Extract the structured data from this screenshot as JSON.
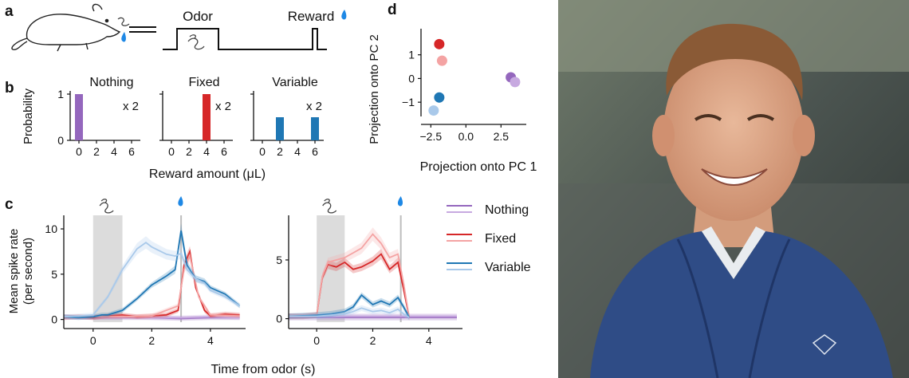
{
  "panels": {
    "a": {
      "letter": "a",
      "odor_label": "Odor",
      "reward_label": "Reward"
    },
    "b": {
      "letter": "b",
      "ylabel": "Probability",
      "xlabel": "Reward amount (μL)",
      "multiplier": "x 2",
      "titles": [
        "Nothing",
        "Fixed",
        "Variable"
      ],
      "yticks": [
        "0",
        "1"
      ],
      "xticks": [
        "0",
        "2",
        "4",
        "6"
      ]
    },
    "c": {
      "letter": "c",
      "ylabel_line1": "Mean spike rate",
      "ylabel_line2": "(per second)",
      "xlabel": "Time from odor (s)",
      "legend": [
        "Nothing",
        "Fixed",
        "Variable"
      ]
    },
    "d": {
      "letter": "d",
      "xlabel": "Projection onto PC 1",
      "ylabel": "Projection onto PC 2",
      "xticks": [
        "−2.5",
        "0.0",
        "2.5"
      ],
      "yticks": [
        "−1",
        "0",
        "1"
      ]
    }
  },
  "chart_data": [
    {
      "type": "bar",
      "panel": "b",
      "title": "Nothing",
      "xlabel": "Reward amount (μL)",
      "ylabel": "Probability",
      "x": [
        0
      ],
      "values": [
        1.0
      ],
      "ylim": [
        0,
        1
      ],
      "xlim": [
        -1,
        7
      ],
      "color": "#9467bd"
    },
    {
      "type": "bar",
      "panel": "b",
      "title": "Fixed",
      "x": [
        4
      ],
      "values": [
        1.0
      ],
      "ylim": [
        0,
        1
      ],
      "xlim": [
        -1,
        7
      ],
      "color": "#d62728"
    },
    {
      "type": "bar",
      "panel": "b",
      "title": "Variable",
      "x": [
        2,
        6
      ],
      "values": [
        0.5,
        0.5
      ],
      "ylim": [
        0,
        1
      ],
      "xlim": [
        -1,
        7
      ],
      "color": "#1f77b4"
    },
    {
      "type": "line",
      "panel": "c-left",
      "xlabel": "Time from odor (s)",
      "ylabel": "Mean spike rate (per second)",
      "xlim": [
        -1,
        5.2
      ],
      "ylim": [
        -0.3,
        11.5
      ],
      "xticks": [
        0,
        2,
        4
      ],
      "yticks": [
        0,
        5,
        10
      ],
      "odor_window": [
        0,
        1
      ],
      "reward_time": 3,
      "series": [
        {
          "color": "#9467bd",
          "x": [
            -1,
            0,
            1,
            2,
            3,
            4,
            5
          ],
          "values": [
            0.3,
            0.2,
            0.2,
            0.2,
            0.1,
            0.2,
            0.2
          ]
        },
        {
          "color": "#c7a9e0",
          "x": [
            -1,
            0,
            1,
            2,
            3,
            4,
            5
          ],
          "values": [
            0.2,
            0.3,
            0.3,
            0.2,
            0.2,
            0.3,
            0.2
          ]
        },
        {
          "color": "#d62728",
          "x": [
            -1,
            -0.5,
            0,
            0.5,
            1,
            1.5,
            2,
            2.5,
            2.9,
            3.1,
            3.3,
            3.5,
            3.8,
            4,
            4.5,
            5
          ],
          "values": [
            0.2,
            0.3,
            0.2,
            0.4,
            0.5,
            0.3,
            0.4,
            0.5,
            1.0,
            6.0,
            7.5,
            3.5,
            1.0,
            0.4,
            0.6,
            0.5
          ]
        },
        {
          "color": "#f4a3a3",
          "x": [
            -1,
            0,
            1,
            2,
            2.9,
            3.1,
            3.3,
            3.6,
            4,
            5
          ],
          "values": [
            0.3,
            0.3,
            0.3,
            0.4,
            1.5,
            5.5,
            7.0,
            2.5,
            0.5,
            0.4
          ]
        },
        {
          "color": "#1f77b4",
          "x": [
            -1,
            -0.5,
            0,
            0.3,
            0.5,
            1,
            1.5,
            2,
            2.5,
            2.8,
            3.0,
            3.2,
            3.5,
            3.8,
            4,
            4.5,
            5
          ],
          "values": [
            0.3,
            0.2,
            0.3,
            0.5,
            0.5,
            1.0,
            2.3,
            3.8,
            4.8,
            5.5,
            9.8,
            6.0,
            4.5,
            4.2,
            3.5,
            2.8,
            1.5
          ]
        },
        {
          "color": "#a9c9ea",
          "x": [
            -1,
            -0.5,
            0,
            0.5,
            1,
            1.5,
            1.8,
            2,
            2.5,
            2.8,
            3.0,
            3.2,
            3.5,
            3.8,
            4,
            4.5,
            5
          ],
          "values": [
            0.3,
            0.4,
            0.5,
            2.5,
            5.5,
            7.8,
            8.5,
            8.0,
            7.2,
            7.0,
            7.3,
            5.5,
            4.5,
            4.0,
            3.2,
            2.5,
            1.5
          ]
        }
      ]
    },
    {
      "type": "line",
      "panel": "c-right",
      "xlim": [
        -1,
        5.2
      ],
      "ylim": [
        -0.3,
        8.8
      ],
      "xticks": [
        0,
        2,
        4
      ],
      "yticks": [
        0,
        5
      ],
      "odor_window": [
        0,
        1
      ],
      "reward_time": 3,
      "series": [
        {
          "color": "#9467bd",
          "x": [
            -1,
            0,
            1,
            2,
            3,
            3.3,
            4,
            5
          ],
          "values": [
            0.1,
            0.1,
            0.1,
            0.1,
            0.1,
            0.1,
            0.1,
            0.1
          ]
        },
        {
          "color": "#c7a9e0",
          "x": [
            -1,
            0,
            1,
            2,
            3,
            3.3,
            4,
            5
          ],
          "values": [
            0.2,
            0.2,
            0.2,
            0.2,
            0.2,
            0.2,
            0.2,
            0.2
          ]
        },
        {
          "color": "#d62728",
          "x": [
            -1,
            -0.5,
            0,
            0.2,
            0.4,
            0.7,
            1,
            1.3,
            1.6,
            2,
            2.3,
            2.6,
            2.9,
            3.1,
            3.3
          ],
          "values": [
            0.2,
            0.2,
            0.3,
            3.5,
            4.6,
            4.4,
            4.8,
            4.2,
            4.4,
            4.9,
            5.5,
            4.2,
            4.8,
            2.5,
            0.1
          ]
        },
        {
          "color": "#f4a3a3",
          "x": [
            -1,
            -0.5,
            0,
            0.2,
            0.4,
            0.7,
            1,
            1.3,
            1.6,
            2,
            2.3,
            2.6,
            2.9,
            3.1,
            3.3
          ],
          "values": [
            0.2,
            0.2,
            0.3,
            3.6,
            4.8,
            5.0,
            5.2,
            5.6,
            6.0,
            7.2,
            6.4,
            5.2,
            5.5,
            3.0,
            0.1
          ]
        },
        {
          "color": "#1f77b4",
          "x": [
            -1,
            0,
            0.5,
            1,
            1.3,
            1.6,
            2,
            2.3,
            2.6,
            2.9,
            3.1,
            3.3
          ],
          "values": [
            0.2,
            0.3,
            0.4,
            0.6,
            1.0,
            2.0,
            1.2,
            1.5,
            1.2,
            1.8,
            1.0,
            0.1
          ]
        },
        {
          "color": "#a9c9ea",
          "x": [
            -1,
            0,
            0.5,
            1,
            1.3,
            1.6,
            2,
            2.3,
            2.6,
            2.9,
            3.1,
            3.3
          ],
          "values": [
            0.2,
            0.2,
            0.3,
            0.4,
            0.6,
            0.9,
            0.6,
            0.7,
            0.5,
            0.8,
            0.4,
            0.1
          ]
        }
      ]
    },
    {
      "type": "scatter",
      "panel": "d",
      "xlabel": "Projection onto PC 1",
      "ylabel": "Projection onto PC 2",
      "xlim": [
        -3.2,
        4.3
      ],
      "ylim": [
        -1.6,
        2.1
      ],
      "points": [
        {
          "x": -1.9,
          "y": 1.45,
          "color": "#d62728"
        },
        {
          "x": -1.7,
          "y": 0.75,
          "color": "#f4a3a3"
        },
        {
          "x": -1.9,
          "y": -0.8,
          "color": "#1f77b4"
        },
        {
          "x": -2.3,
          "y": -1.35,
          "color": "#a9c9ea"
        },
        {
          "x": 3.2,
          "y": 0.05,
          "color": "#9467bd"
        },
        {
          "x": 3.5,
          "y": -0.15,
          "color": "#c7a9e0"
        }
      ]
    }
  ]
}
